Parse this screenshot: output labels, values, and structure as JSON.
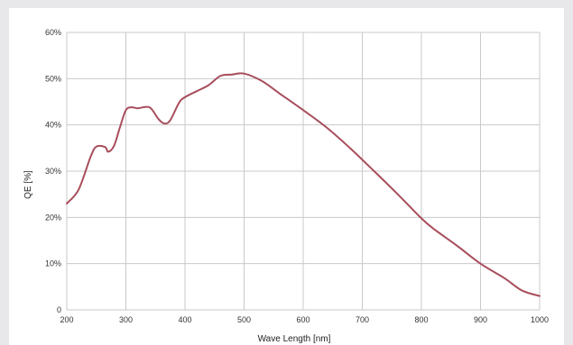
{
  "chart_data": {
    "type": "line",
    "title": "",
    "xlabel": "Wave Length [nm]",
    "ylabel": "QE [%]",
    "xlim": [
      200,
      1000
    ],
    "ylim": [
      0,
      60
    ],
    "x_ticks": [
      200,
      300,
      400,
      500,
      600,
      700,
      800,
      900,
      1000
    ],
    "y_ticks": [
      0,
      10,
      20,
      30,
      40,
      50,
      60
    ],
    "y_tick_labels": [
      "0",
      "10%",
      "20%",
      "30%",
      "40%",
      "50%",
      "60%"
    ],
    "grid": true,
    "line_color": "#a84e5c",
    "series": [
      {
        "name": "",
        "x": [
          200,
          220,
          240,
          250,
          265,
          270,
          280,
          290,
          300,
          310,
          320,
          340,
          355,
          365,
          375,
          390,
          400,
          420,
          440,
          460,
          480,
          500,
          530,
          560,
          600,
          640,
          680,
          720,
          760,
          800,
          820,
          860,
          900,
          940,
          970,
          1000
        ],
        "y": [
          23,
          26,
          33,
          35.3,
          35.2,
          34.2,
          35.5,
          39.5,
          43.2,
          43.8,
          43.6,
          43.8,
          41.3,
          40.3,
          41,
          44.8,
          46,
          47.3,
          48.6,
          50.6,
          50.9,
          51.1,
          49.5,
          46.8,
          43.2,
          39.4,
          34.9,
          30,
          25,
          19.8,
          17.6,
          13.9,
          10,
          6.9,
          4.2,
          3
        ]
      }
    ]
  }
}
